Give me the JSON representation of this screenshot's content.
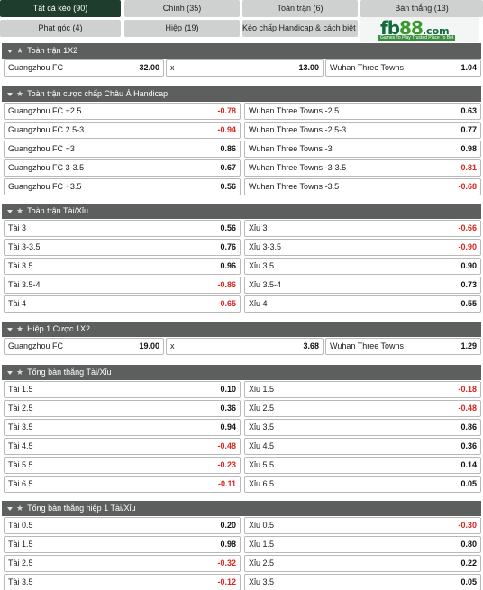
{
  "tabs": [
    {
      "label": "Tất cả kèo (90)",
      "active": true
    },
    {
      "label": "Chính (35)"
    },
    {
      "label": "Toàn trận (6)"
    },
    {
      "label": "Bàn thắng (13)"
    },
    {
      "label": "Phạt góc (4)"
    },
    {
      "label": "Hiệp (19)"
    },
    {
      "label": "Kèo chấp Handicap & cách biệt (5)"
    }
  ],
  "logo": {
    "text": "fb",
    "number": "88",
    "domain": ".com",
    "tagline": "Games To Play  Trusted Place To Bet"
  },
  "sections": [
    {
      "title": "Toàn trận 1X2",
      "rows": [
        [
          {
            "label": "Guangzhou FC",
            "value": "32.00"
          },
          {
            "label": "x",
            "value": "13.00"
          },
          {
            "label": "Wuhan Three Towns",
            "value": "1.04"
          }
        ]
      ]
    },
    {
      "title": "Toàn trận cược chấp Châu Á Handicap",
      "rows": [
        [
          {
            "label": "Guangzhou FC",
            "line": "+2.5",
            "value": "-0.78"
          },
          {
            "label": "Wuhan Three Towns",
            "line": "-2.5",
            "value": "0.63"
          }
        ],
        [
          {
            "label": "Guangzhou FC",
            "line": "2.5-3",
            "value": "-0.94"
          },
          {
            "label": "Wuhan Three Towns",
            "line": "-2.5-3",
            "value": "0.77"
          }
        ],
        [
          {
            "label": "Guangzhou FC",
            "line": "+3",
            "value": "0.86"
          },
          {
            "label": "Wuhan Three Towns",
            "line": "-3",
            "value": "0.98"
          }
        ],
        [
          {
            "label": "Guangzhou FC",
            "line": "3-3.5",
            "value": "0.67"
          },
          {
            "label": "Wuhan Three Towns",
            "line": "-3-3.5",
            "value": "-0.81"
          }
        ],
        [
          {
            "label": "Guangzhou FC",
            "line": "+3.5",
            "value": "0.56"
          },
          {
            "label": "Wuhan Three Towns",
            "line": "-3.5",
            "value": "-0.68"
          }
        ]
      ]
    },
    {
      "title": "Toàn trận Tài/Xỉu",
      "rows": [
        [
          {
            "label": "Tài",
            "line": "3",
            "value": "0.56"
          },
          {
            "label": "Xỉu",
            "line": "3",
            "value": "-0.66"
          }
        ],
        [
          {
            "label": "Tài",
            "line": "3-3.5",
            "value": "0.76"
          },
          {
            "label": "Xỉu",
            "line": "3-3.5",
            "value": "-0.90"
          }
        ],
        [
          {
            "label": "Tài",
            "line": "3.5",
            "value": "0.96"
          },
          {
            "label": "Xỉu",
            "line": "3.5",
            "value": "0.90"
          }
        ],
        [
          {
            "label": "Tài",
            "line": "3.5-4",
            "value": "-0.86"
          },
          {
            "label": "Xỉu",
            "line": "3.5-4",
            "value": "0.73"
          }
        ],
        [
          {
            "label": "Tài",
            "line": "4",
            "value": "-0.65"
          },
          {
            "label": "Xỉu",
            "line": "4",
            "value": "0.55"
          }
        ]
      ]
    },
    {
      "title": "Hiệp 1 Cược 1X2",
      "rows": [
        [
          {
            "label": "Guangzhou FC",
            "value": "19.00"
          },
          {
            "label": "x",
            "value": "3.68"
          },
          {
            "label": "Wuhan Three Towns",
            "value": "1.29"
          }
        ]
      ]
    },
    {
      "title": "Tổng bàn thắng Tài/Xỉu",
      "rows": [
        [
          {
            "label": "Tài",
            "line": "1.5",
            "value": "0.10"
          },
          {
            "label": "Xỉu",
            "line": "1.5",
            "value": "-0.18"
          }
        ],
        [
          {
            "label": "Tài",
            "line": "2.5",
            "value": "0.36"
          },
          {
            "label": "Xỉu",
            "line": "2.5",
            "value": "-0.48"
          }
        ],
        [
          {
            "label": "Tài",
            "line": "3.5",
            "value": "0.94"
          },
          {
            "label": "Xỉu",
            "line": "3.5",
            "value": "0.86"
          }
        ],
        [
          {
            "label": "Tài",
            "line": "4.5",
            "value": "-0.48"
          },
          {
            "label": "Xỉu",
            "line": "4.5",
            "value": "0.36"
          }
        ],
        [
          {
            "label": "Tài",
            "line": "5.5",
            "value": "-0.23"
          },
          {
            "label": "Xỉu",
            "line": "5.5",
            "value": "0.14"
          }
        ],
        [
          {
            "label": "Tài",
            "line": "6.5",
            "value": "-0.11"
          },
          {
            "label": "Xỉu",
            "line": "6.5",
            "value": "0.05"
          }
        ]
      ]
    },
    {
      "title": "Tổng bàn thắng hiệp 1 Tài/Xỉu",
      "rows": [
        [
          {
            "label": "Tài",
            "line": "0.5",
            "value": "0.20"
          },
          {
            "label": "Xỉu",
            "line": "0.5",
            "value": "-0.30"
          }
        ],
        [
          {
            "label": "Tài",
            "line": "1.5",
            "value": "0.98"
          },
          {
            "label": "Xỉu",
            "line": "1.5",
            "value": "0.80"
          }
        ],
        [
          {
            "label": "Tài",
            "line": "2.5",
            "value": "-0.32"
          },
          {
            "label": "Xỉu",
            "line": "2.5",
            "value": "0.22"
          }
        ],
        [
          {
            "label": "Tài",
            "line": "3.5",
            "value": "-0.12"
          },
          {
            "label": "Xỉu",
            "line": "3.5",
            "value": "0.05"
          }
        ]
      ]
    }
  ],
  "colors": {
    "tab_active": "#1f3d2d",
    "section_header": "#5c5f5e",
    "negative": "#d6261f"
  },
  "icons": {
    "collapse": "caret-down-icon",
    "favorite": "star-icon"
  }
}
